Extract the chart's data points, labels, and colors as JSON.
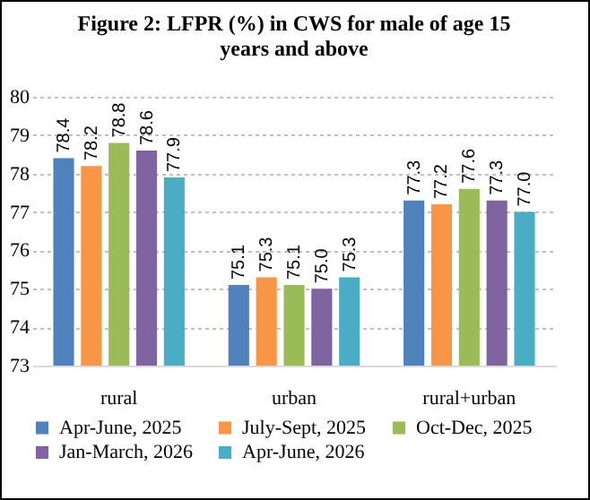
{
  "chart_data": {
    "type": "bar",
    "title": [
      "Figure 2: LFPR  (%) in CWS for male of age 15",
      "years and above"
    ],
    "categories": [
      "rural",
      "urban",
      "rural+urban"
    ],
    "series": [
      {
        "name": "Apr-June, 2025",
        "color": "#4f81bd",
        "values": [
          78.4,
          75.1,
          77.3
        ],
        "value_labels": [
          "78.4",
          "75.1",
          "77.3"
        ]
      },
      {
        "name": "July-Sept, 2025",
        "color": "#f79646",
        "values": [
          78.2,
          75.3,
          77.2
        ],
        "value_labels": [
          "78.2",
          "75.3",
          "77.2"
        ]
      },
      {
        "name": "Oct-Dec, 2025",
        "color": "#9bbb59",
        "values": [
          78.8,
          75.1,
          77.6
        ],
        "value_labels": [
          "78.8",
          "75.1",
          "77.6"
        ]
      },
      {
        "name": "Jan-March, 2026",
        "color": "#8064a2",
        "values": [
          78.6,
          75.0,
          77.3
        ],
        "value_labels": [
          "78.6",
          "75.0",
          "77.3"
        ]
      },
      {
        "name": "Apr-June, 2026",
        "color": "#4bacc6",
        "values": [
          77.9,
          75.3,
          77.0
        ],
        "value_labels": [
          "77.9",
          "75.3",
          "77.0"
        ]
      }
    ],
    "ylim": [
      73,
      80
    ],
    "yticks": [
      73,
      74,
      75,
      76,
      77,
      78,
      79,
      80
    ],
    "grid": "y",
    "legend": "bottom"
  }
}
